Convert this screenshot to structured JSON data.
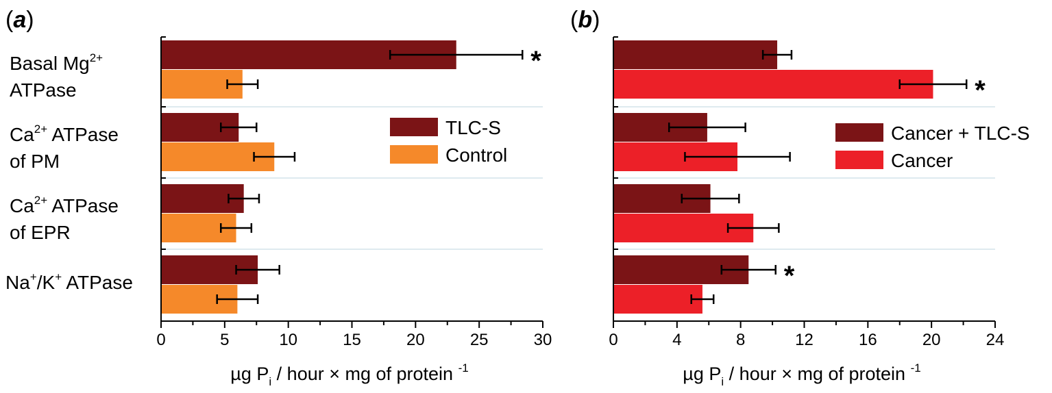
{
  "chart_data": [
    {
      "type": "bar",
      "orientation": "horizontal",
      "panel_prefix": "(",
      "panel_letter": "a",
      "panel_suffix": ")",
      "categories": [
        {
          "line1": {
            "text": "Basal Mg",
            "sup": "2+"
          },
          "line2": {
            "text": "ATPase",
            "sup": ""
          }
        },
        {
          "line1": {
            "text": "Ca",
            "sup": "2+",
            "rest": " ATPase"
          },
          "line2": {
            "text": "of PM",
            "sup": ""
          }
        },
        {
          "line1": {
            "text": "Ca",
            "sup": "2+",
            "rest": " ATPase"
          },
          "line2": {
            "text": "of EPR",
            "sup": ""
          }
        },
        {
          "line1": {
            "parts": [
              {
                "t": "Na"
              },
              {
                "s": "+"
              },
              {
                "t": "/K"
              },
              {
                "s": "+"
              },
              {
                "t": " ATPase"
              }
            ]
          }
        }
      ],
      "series": [
        {
          "name": "TLC-S",
          "color": "#7b1416",
          "values": [
            23.2,
            6.1,
            6.5,
            7.6
          ],
          "errors": [
            5.2,
            1.4,
            1.2,
            1.7
          ],
          "significant": [
            true,
            false,
            false,
            false
          ]
        },
        {
          "name": "Control",
          "color": "#f5892a",
          "values": [
            6.4,
            8.9,
            5.9,
            6.0
          ],
          "errors": [
            1.2,
            1.6,
            1.2,
            1.6
          ],
          "significant": [
            false,
            false,
            false,
            false
          ]
        }
      ],
      "xlim": [
        0,
        30
      ],
      "xticks": [
        0,
        5,
        10,
        15,
        20,
        25,
        30
      ],
      "xlabel": {
        "pre": "µg P",
        "sub": "i",
        "post": " / hour × mg of protein ",
        "sup": "-1"
      },
      "significance_marker": "*",
      "legend_position": "right-middle"
    },
    {
      "type": "bar",
      "orientation": "horizontal",
      "panel_prefix": "(",
      "panel_letter": "b",
      "panel_suffix": ")",
      "series": [
        {
          "name": "Cancer + TLC-S",
          "color": "#7b1416",
          "values": [
            10.3,
            5.9,
            6.1,
            8.5
          ],
          "errors": [
            0.9,
            2.4,
            1.8,
            1.7
          ],
          "significant": [
            false,
            false,
            false,
            true
          ]
        },
        {
          "name": "Cancer",
          "color": "#ec2028",
          "values": [
            20.1,
            7.8,
            8.8,
            5.6
          ],
          "errors": [
            2.1,
            3.3,
            1.6,
            0.7
          ],
          "significant": [
            true,
            false,
            false,
            false
          ]
        }
      ],
      "xlim": [
        0,
        24
      ],
      "xticks": [
        0,
        4,
        8,
        12,
        16,
        20,
        24
      ],
      "xlabel": {
        "pre": "µg P",
        "sub": "i",
        "post": " / hour × mg of protein ",
        "sup": "-1"
      },
      "significance_marker": "*",
      "legend_position": "right-middle"
    }
  ]
}
